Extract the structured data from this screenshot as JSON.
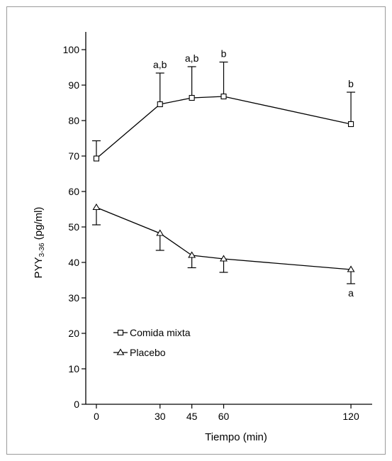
{
  "chart_data": {
    "type": "line",
    "xlabel": "Tiempo (min)",
    "ylabel": {
      "main": "PYY",
      "sub": "3-36",
      "unit": " (pg/ml)"
    },
    "xlim": [
      -5,
      130
    ],
    "ylim": [
      0,
      105
    ],
    "x_ticks": [
      0,
      30,
      45,
      60,
      120
    ],
    "y_ticks": [
      0,
      10,
      20,
      30,
      40,
      50,
      60,
      70,
      80,
      90,
      100
    ],
    "grid": false,
    "legend_position": "bottom-left",
    "series": [
      {
        "name": "Comida mixta",
        "marker": "square",
        "x": [
          0,
          30,
          45,
          60,
          120
        ],
        "y": [
          69.3,
          84.6,
          86.4,
          86.8,
          79.0
        ],
        "error_upper": [
          74.3,
          93.4,
          95.2,
          96.5,
          88.0
        ],
        "error_lower": [
          null,
          null,
          null,
          null,
          null
        ],
        "annotations": [
          "",
          "a,b",
          "a,b",
          "b",
          "b"
        ],
        "annotation_side": "above"
      },
      {
        "name": "Placebo",
        "marker": "triangle",
        "x": [
          0,
          30,
          45,
          60,
          120
        ],
        "y": [
          55.5,
          48.2,
          42.0,
          41.0,
          38.0
        ],
        "error_upper": [
          null,
          null,
          null,
          null,
          null
        ],
        "error_lower": [
          50.6,
          43.4,
          38.5,
          37.2,
          34.0
        ],
        "annotations": [
          "",
          "",
          "",
          "",
          "a"
        ],
        "annotation_side": "below"
      }
    ]
  }
}
